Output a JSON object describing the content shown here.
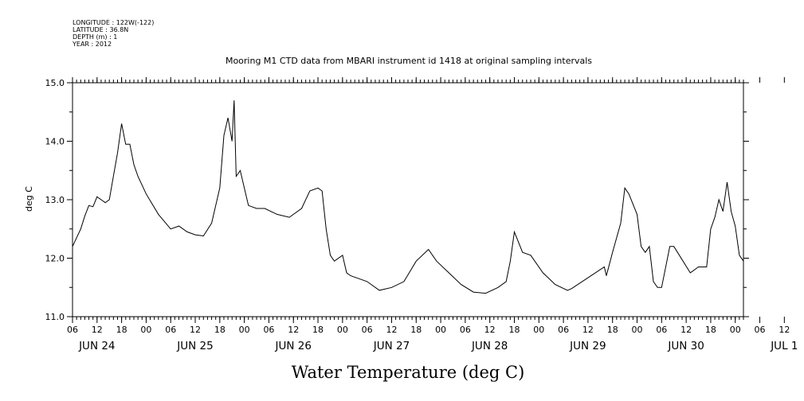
{
  "meta_lines": [
    "LONGITUDE : 122W(-122)",
    "LATITUDE : 36.8N",
    "DEPTH (m) : 1",
    "YEAR : 2012"
  ],
  "chart_data": {
    "type": "line",
    "title": "Mooring M1 CTD data from MBARI instrument id 1418 at original sampling intervals",
    "ylabel": "deg C",
    "xlabel": "Water Temperature (deg C)",
    "ylim": [
      11.0,
      15.0
    ],
    "yticks": [
      "11.0",
      "12.0",
      "13.0",
      "14.0",
      "15.0"
    ],
    "xlim": [
      "2012-06-24T06:00",
      "2012-07-01T02:00"
    ],
    "hour_ticks": [
      "06",
      "12",
      "18",
      "00",
      "06",
      "12",
      "18",
      "00",
      "06",
      "12",
      "18",
      "00",
      "06",
      "12",
      "18",
      "00",
      "06",
      "12",
      "18",
      "00",
      "06",
      "12",
      "18",
      "00",
      "06",
      "12",
      "18",
      "00",
      "06",
      "12",
      "18",
      "00"
    ],
    "day_labels": [
      "JUN 24",
      "JUN 25",
      "JUN 26",
      "JUN 27",
      "JUN 28",
      "JUN 29",
      "JUN 30",
      "JUL  1"
    ],
    "series": [
      {
        "x": [
          "2012-06-24T06:00",
          "2012-06-24T07:00",
          "2012-06-24T08:00",
          "2012-06-24T09:00",
          "2012-06-24T10:00",
          "2012-06-24T11:00",
          "2012-06-24T12:00",
          "2012-06-24T13:00",
          "2012-06-24T14:00",
          "2012-06-24T15:00",
          "2012-06-24T16:00",
          "2012-06-24T17:00",
          "2012-06-24T18:00",
          "2012-06-24T19:00",
          "2012-06-24T20:00",
          "2012-06-24T21:00",
          "2012-06-24T22:00",
          "2012-06-25T00:00",
          "2012-06-25T03:00",
          "2012-06-25T06:00",
          "2012-06-25T08:00",
          "2012-06-25T10:00",
          "2012-06-25T12:00",
          "2012-06-25T14:00",
          "2012-06-25T16:00",
          "2012-06-25T18:00",
          "2012-06-25T19:00",
          "2012-06-25T20:00",
          "2012-06-25T21:00",
          "2012-06-25T21:30",
          "2012-06-25T22:00",
          "2012-06-25T23:00",
          "2012-06-26T00:00",
          "2012-06-26T01:00",
          "2012-06-26T03:00",
          "2012-06-26T05:00",
          "2012-06-26T08:00",
          "2012-06-26T11:00",
          "2012-06-26T14:00",
          "2012-06-26T16:00",
          "2012-06-26T18:00",
          "2012-06-26T19:00",
          "2012-06-26T20:00",
          "2012-06-26T21:00",
          "2012-06-26T22:00",
          "2012-06-27T00:00",
          "2012-06-27T01:00",
          "2012-06-27T02:00",
          "2012-06-27T04:00",
          "2012-06-27T06:00",
          "2012-06-27T09:00",
          "2012-06-27T12:00",
          "2012-06-27T15:00",
          "2012-06-27T18:00",
          "2012-06-27T21:00",
          "2012-06-27T23:00",
          "2012-06-28T02:00",
          "2012-06-28T05:00",
          "2012-06-28T08:00",
          "2012-06-28T11:00",
          "2012-06-28T14:00",
          "2012-06-28T16:00",
          "2012-06-28T17:00",
          "2012-06-28T18:00",
          "2012-06-28T20:00",
          "2012-06-28T22:00",
          "2012-06-29T01:00",
          "2012-06-29T04:00",
          "2012-06-29T07:00",
          "2012-06-29T08:00",
          "2012-06-29T16:00",
          "2012-06-29T16:30",
          "2012-06-29T18:00",
          "2012-06-29T20:00",
          "2012-06-29T21:00",
          "2012-06-29T22:00",
          "2012-06-30T00:00",
          "2012-06-30T01:00",
          "2012-06-30T02:00",
          "2012-06-30T03:00",
          "2012-06-30T04:00",
          "2012-06-30T05:00",
          "2012-06-30T06:00",
          "2012-06-30T08:00",
          "2012-06-30T09:00",
          "2012-06-30T13:00",
          "2012-06-30T15:00",
          "2012-06-30T17:00",
          "2012-06-30T18:00",
          "2012-06-30T19:00",
          "2012-06-30T20:00",
          "2012-06-30T21:00",
          "2012-06-30T22:00",
          "2012-06-30T23:00",
          "2012-07-01T00:00",
          "2012-07-01T01:00",
          "2012-07-01T02:00"
        ],
        "y": [
          12.2,
          12.35,
          12.5,
          12.72,
          12.9,
          12.88,
          13.05,
          13.0,
          12.95,
          13.0,
          13.4,
          13.8,
          14.3,
          13.95,
          13.95,
          13.6,
          13.4,
          13.1,
          12.75,
          12.5,
          12.55,
          12.45,
          12.4,
          12.38,
          12.6,
          13.2,
          14.1,
          14.4,
          14.0,
          14.7,
          13.4,
          13.5,
          13.2,
          12.9,
          12.85,
          12.85,
          12.75,
          12.7,
          12.85,
          13.15,
          13.2,
          13.15,
          12.5,
          12.05,
          11.95,
          12.05,
          11.75,
          11.7,
          11.65,
          11.6,
          11.45,
          11.5,
          11.6,
          11.95,
          12.15,
          11.95,
          11.75,
          11.55,
          11.42,
          11.4,
          11.5,
          11.6,
          11.95,
          12.45,
          12.1,
          12.05,
          11.75,
          11.55,
          11.45,
          11.48,
          11.85,
          11.7,
          12.1,
          12.6,
          13.2,
          13.1,
          12.75,
          12.2,
          12.1,
          12.2,
          11.6,
          11.5,
          11.5,
          12.2,
          12.2,
          11.75,
          11.85,
          11.85,
          12.5,
          12.7,
          13.0,
          12.8,
          13.3,
          12.8,
          12.55,
          12.05,
          11.95
        ]
      }
    ]
  }
}
